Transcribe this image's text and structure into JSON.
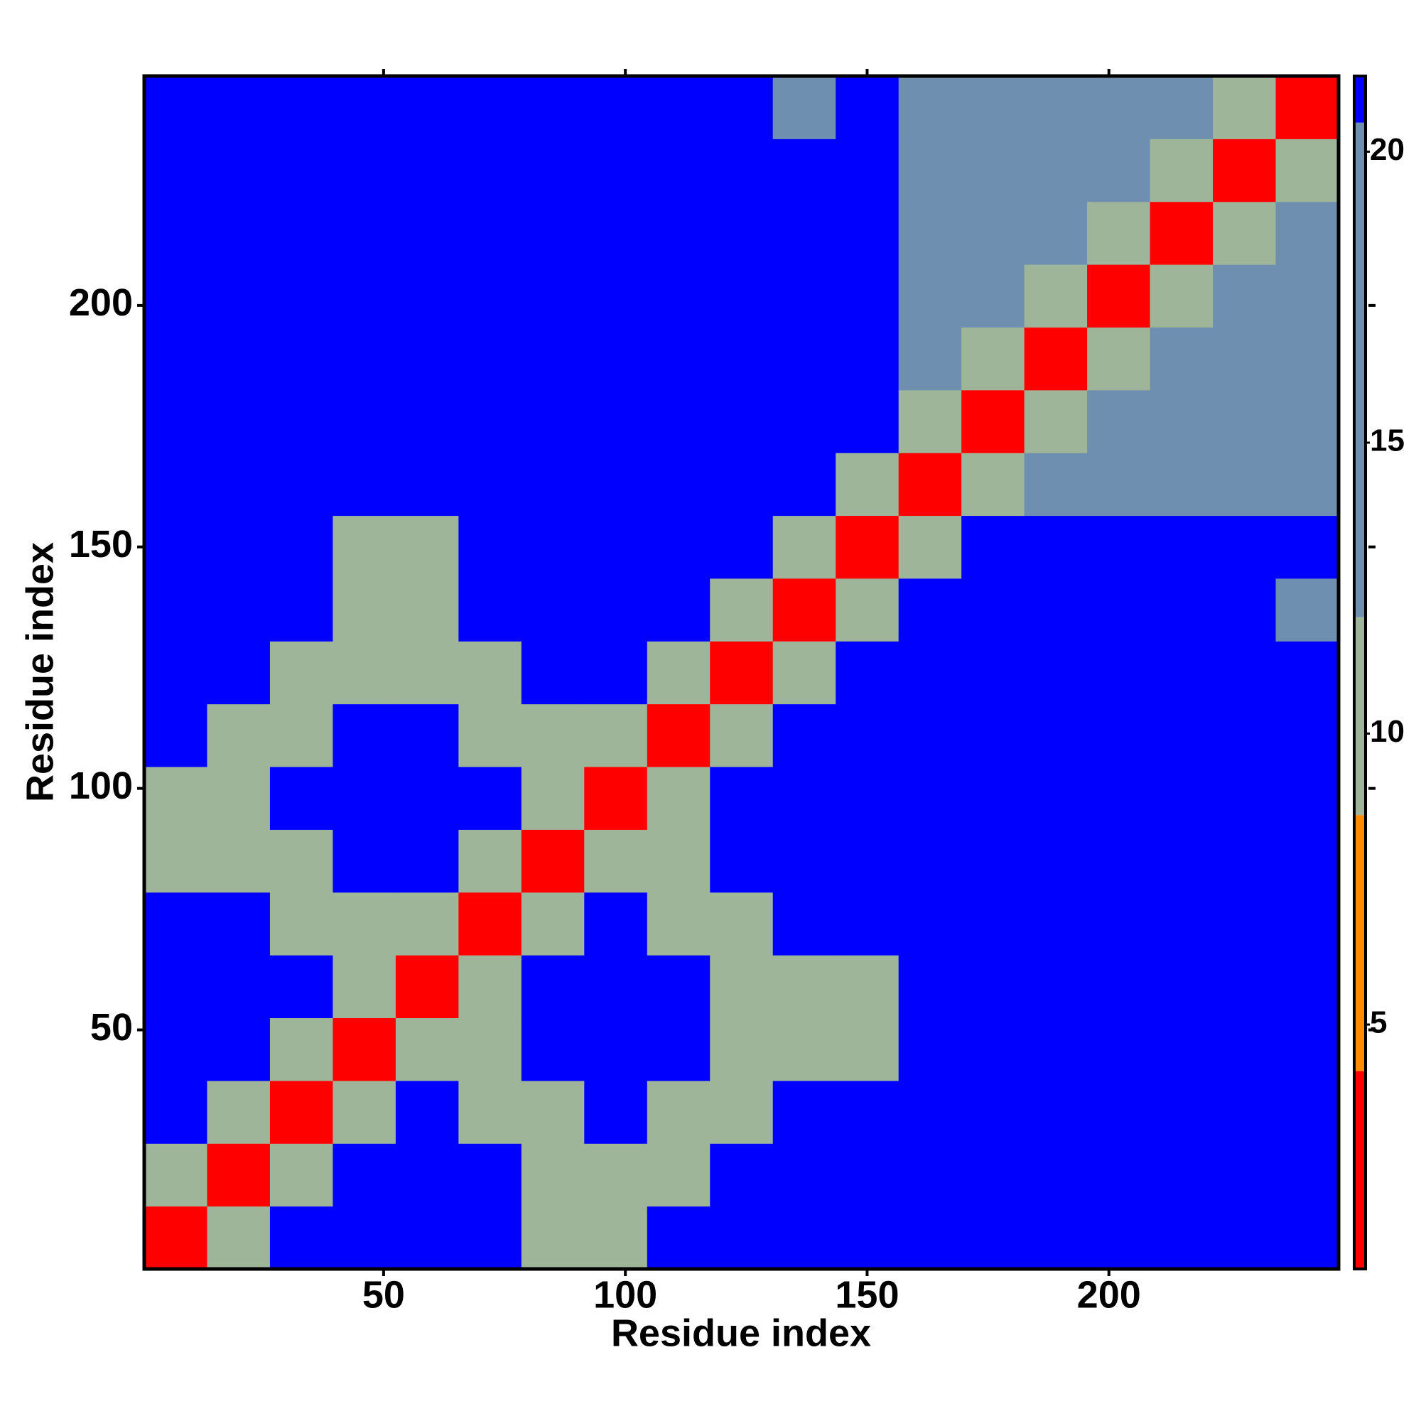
{
  "chart_data": {
    "type": "heatmap",
    "xlabel": "Residue index",
    "ylabel": "Residue index",
    "x": [
      7,
      20,
      33,
      46,
      59,
      72,
      85,
      98,
      111,
      124,
      137,
      150,
      163,
      176,
      189,
      202,
      215,
      228,
      241
    ],
    "y": [
      7,
      20,
      33,
      46,
      59,
      72,
      85,
      98,
      111,
      124,
      137,
      150,
      163,
      176,
      189,
      202,
      215,
      228,
      241
    ],
    "z": [
      [
        3,
        11,
        21,
        21,
        21,
        21,
        11,
        11,
        21,
        21,
        21,
        21,
        21,
        21,
        21,
        21,
        21,
        21,
        21
      ],
      [
        11,
        3,
        11,
        21,
        21,
        21,
        11,
        11,
        11,
        21,
        21,
        21,
        21,
        21,
        21,
        21,
        21,
        21,
        21
      ],
      [
        21,
        11,
        3,
        11,
        21,
        11,
        11,
        21,
        11,
        11,
        21,
        21,
        21,
        21,
        21,
        21,
        21,
        21,
        21
      ],
      [
        21,
        21,
        11,
        3,
        11,
        11,
        21,
        21,
        21,
        11,
        11,
        11,
        21,
        21,
        21,
        21,
        21,
        21,
        21
      ],
      [
        21,
        21,
        21,
        11,
        3,
        11,
        21,
        21,
        21,
        11,
        11,
        11,
        21,
        21,
        21,
        21,
        21,
        21,
        21
      ],
      [
        21,
        21,
        11,
        11,
        11,
        3,
        11,
        21,
        11,
        11,
        21,
        21,
        21,
        21,
        21,
        21,
        21,
        21,
        21
      ],
      [
        11,
        11,
        11,
        21,
        21,
        11,
        3,
        11,
        11,
        21,
        21,
        21,
        21,
        21,
        21,
        21,
        21,
        21,
        21
      ],
      [
        11,
        11,
        21,
        21,
        21,
        21,
        11,
        3,
        11,
        21,
        21,
        21,
        21,
        21,
        21,
        21,
        21,
        21,
        21
      ],
      [
        21,
        11,
        11,
        21,
        21,
        11,
        11,
        11,
        3,
        11,
        21,
        21,
        21,
        21,
        21,
        21,
        21,
        21,
        21
      ],
      [
        21,
        21,
        11,
        11,
        11,
        11,
        21,
        21,
        11,
        3,
        11,
        21,
        21,
        21,
        21,
        21,
        21,
        21,
        21
      ],
      [
        21,
        21,
        21,
        11,
        11,
        21,
        21,
        21,
        21,
        11,
        3,
        11,
        21,
        21,
        21,
        21,
        21,
        21,
        17
      ],
      [
        21,
        21,
        21,
        11,
        11,
        21,
        21,
        21,
        21,
        21,
        11,
        3,
        11,
        21,
        21,
        21,
        21,
        21,
        21
      ],
      [
        21,
        21,
        21,
        21,
        21,
        21,
        21,
        21,
        21,
        21,
        21,
        11,
        3,
        9,
        13,
        13,
        13,
        13,
        13
      ],
      [
        21,
        21,
        21,
        21,
        21,
        21,
        21,
        21,
        21,
        21,
        21,
        21,
        9,
        3,
        9,
        13,
        13,
        13,
        13
      ],
      [
        21,
        21,
        21,
        21,
        21,
        21,
        21,
        21,
        21,
        21,
        21,
        21,
        13,
        9,
        3,
        9,
        13,
        13,
        13
      ],
      [
        21,
        21,
        21,
        21,
        21,
        21,
        21,
        21,
        21,
        21,
        21,
        21,
        13,
        13,
        9,
        3,
        9,
        13,
        13
      ],
      [
        21,
        21,
        21,
        21,
        21,
        21,
        21,
        21,
        21,
        21,
        21,
        21,
        13,
        13,
        13,
        9,
        3,
        9,
        13
      ],
      [
        21,
        21,
        21,
        21,
        21,
        21,
        21,
        21,
        21,
        21,
        21,
        21,
        13,
        13,
        13,
        13,
        9,
        3,
        9
      ],
      [
        21,
        21,
        21,
        21,
        21,
        21,
        21,
        21,
        21,
        21,
        17,
        21,
        13,
        13,
        13,
        13,
        13,
        9,
        3
      ]
    ],
    "xlim": [
      0.5,
      247.5
    ],
    "ylim": [
      0.5,
      247.5
    ],
    "xticks": [
      50,
      100,
      150,
      200
    ],
    "yticks": [
      50,
      100,
      150,
      200
    ],
    "zlim": [
      0.8,
      21.3
    ],
    "zticks": [
      5,
      10,
      15,
      20
    ],
    "colorscale": [
      {
        "max": 4.2,
        "color": "#ff0000"
      },
      {
        "max": 8.6,
        "color": "#ff8c00"
      },
      {
        "max": 12,
        "color": "#9fb59a"
      },
      {
        "max": 20.5,
        "color": "#6f8fb0"
      },
      {
        "max": 21.3,
        "color": "#0000ff"
      }
    ]
  }
}
